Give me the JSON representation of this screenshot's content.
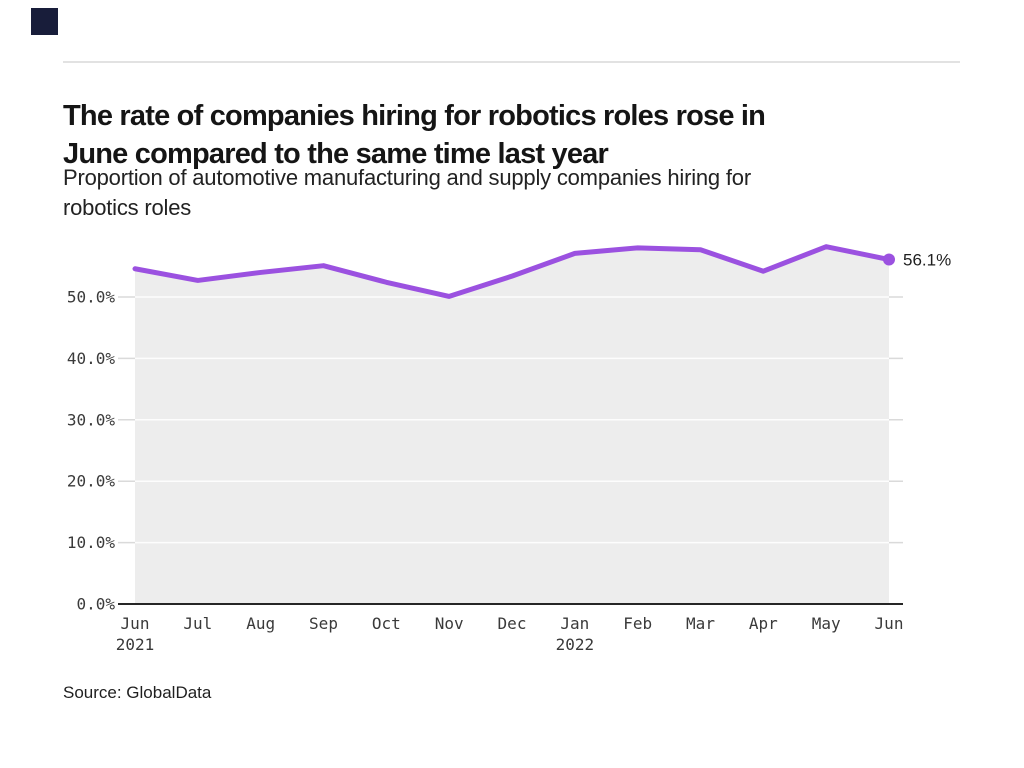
{
  "brand": {
    "logo_color": "#181d3a",
    "rule_color": "#e2e2e2"
  },
  "header": {
    "title": "The rate of companies hiring for robotics roles rose in June compared to the same time last year",
    "title_lines": [
      "The rate of companies hiring for robotics roles rose in",
      "June compared to the same time last year"
    ],
    "subtitle": "Proportion of automotive manufacturing and supply companies hiring for robotics roles",
    "subtitle_lines": [
      "Proportion of automotive manufacturing and supply companies hiring for",
      "robotics roles"
    ]
  },
  "chart_data": {
    "type": "line",
    "title": "The rate of companies hiring for robotics roles rose in June compared to the same time last year",
    "subtitle": "Proportion of automotive manufacturing and supply companies hiring for robotics roles",
    "categories": [
      {
        "label": "Jun",
        "year": "2021"
      },
      {
        "label": "Jul"
      },
      {
        "label": "Aug"
      },
      {
        "label": "Sep"
      },
      {
        "label": "Oct"
      },
      {
        "label": "Nov"
      },
      {
        "label": "Dec"
      },
      {
        "label": "Jan",
        "year": "2022"
      },
      {
        "label": "Feb"
      },
      {
        "label": "Mar"
      },
      {
        "label": "Apr"
      },
      {
        "label": "May"
      },
      {
        "label": "Jun"
      }
    ],
    "values": [
      54.6,
      52.7,
      54.0,
      55.1,
      52.4,
      50.1,
      53.4,
      57.1,
      58.0,
      57.7,
      54.2,
      58.2,
      56.1
    ],
    "unit": "%",
    "y_ticks": [
      "0.0%",
      "10.0%",
      "20.0%",
      "30.0%",
      "40.0%",
      "50.0%"
    ],
    "ylim": [
      0,
      60
    ],
    "xlabel": "",
    "ylabel": "",
    "grid": true,
    "legend_position": "none",
    "end_label": "56.1%",
    "line_color": "#9B51E0",
    "fill_color": "#ededed",
    "grid_color": "#dadada",
    "baseline_color": "#262626",
    "tick_text_color": "#3a3a3a",
    "end_label_color": "#1f1f1f"
  },
  "source": {
    "label": "Source: GlobalData"
  }
}
